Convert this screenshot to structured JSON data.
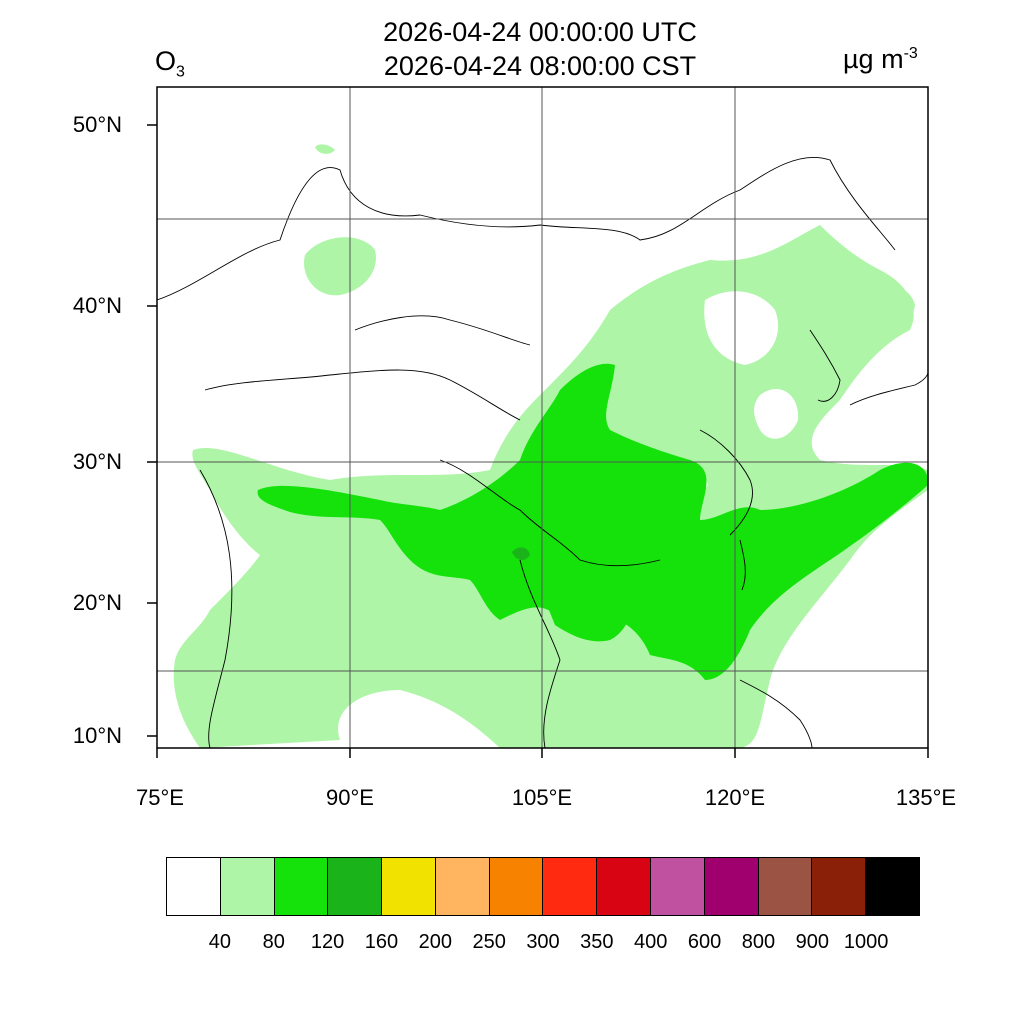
{
  "title": {
    "line1": "2026-04-24 00:00:00 UTC",
    "line2": "2026-04-24 08:00:00 CST",
    "species": "O",
    "species_sub": "3",
    "units": "µg m",
    "units_sup": "-3"
  },
  "map": {
    "lat_labels": [
      "50°N",
      "40°N",
      "30°N",
      "20°N",
      "10°N"
    ],
    "lon_labels": [
      "75°E",
      "90°E",
      "105°E",
      "120°E",
      "135°E"
    ],
    "fill_colors": {
      "light_green": "#aef5a8",
      "green": "#14e20a",
      "dark_green": "#1ab41a"
    }
  },
  "legend": {
    "colors": [
      "#ffffff",
      "#aef5a8",
      "#14e20a",
      "#1ab41a",
      "#f2e200",
      "#ffb560",
      "#f68200",
      "#ff2a10",
      "#d80414",
      "#c050a0",
      "#a0006e",
      "#9b5343",
      "#8a2008",
      "#000000"
    ],
    "labels": [
      "40",
      "80",
      "120",
      "160",
      "200",
      "250",
      "300",
      "350",
      "400",
      "600",
      "800",
      "900",
      "1000"
    ]
  }
}
